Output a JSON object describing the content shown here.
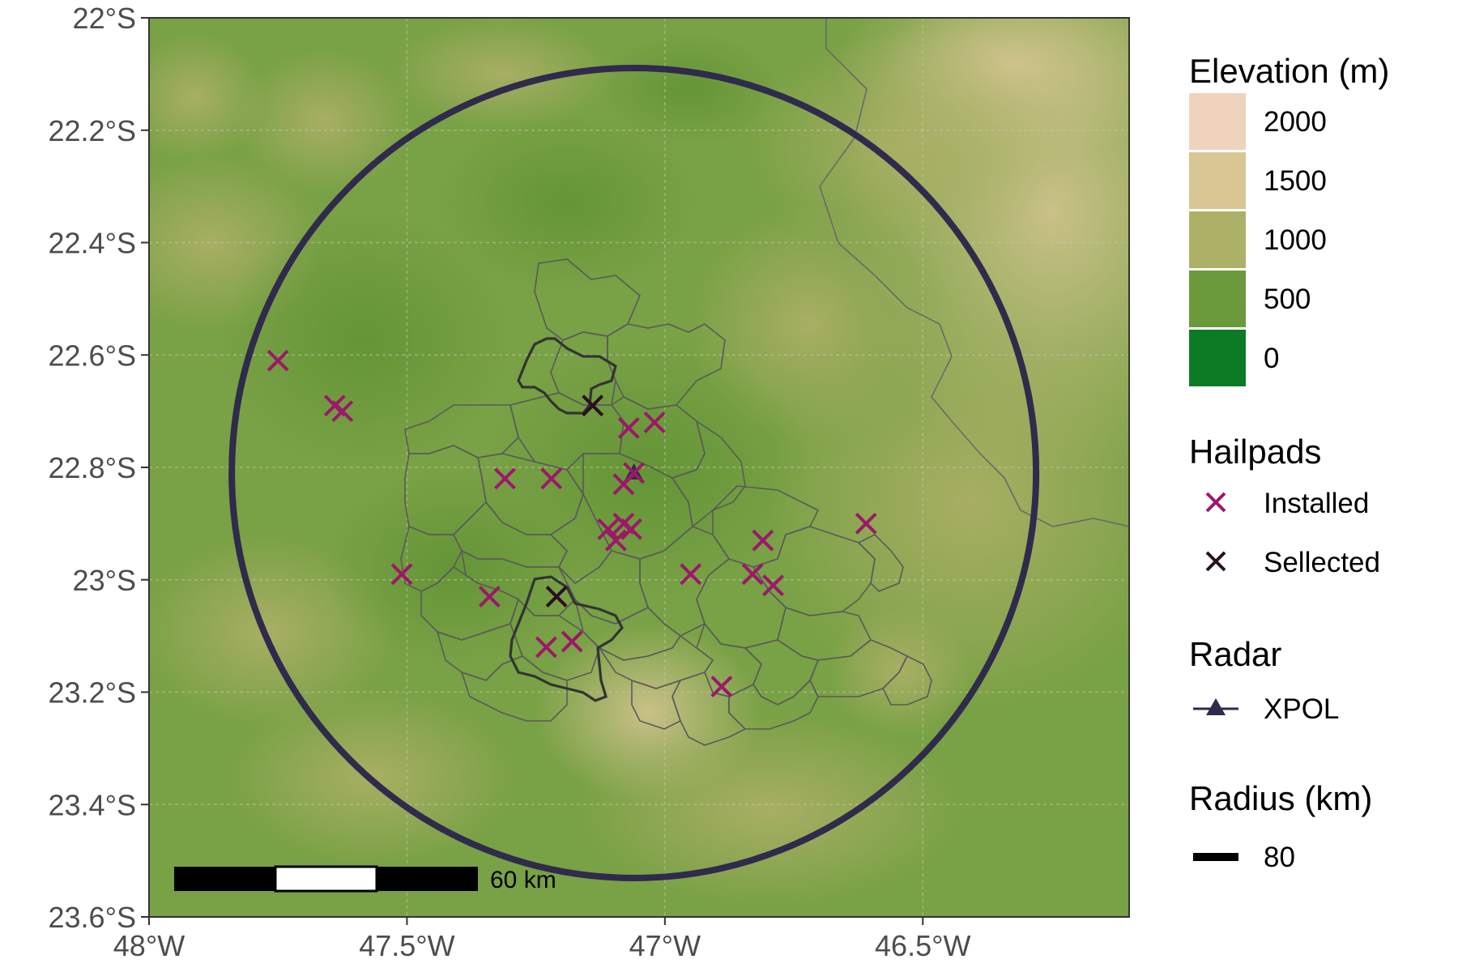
{
  "chart_data": {
    "type": "map",
    "x_axis": {
      "range": [
        -48.0,
        -46.1
      ],
      "ticks": [
        {
          "value": -48.0,
          "label": "48°W"
        },
        {
          "value": -47.5,
          "label": "47.5°W"
        },
        {
          "value": -47.0,
          "label": "47°W"
        },
        {
          "value": -46.5,
          "label": "46.5°W"
        }
      ]
    },
    "y_axis": {
      "range": [
        -23.6,
        -22.0
      ],
      "ticks": [
        {
          "value": -22.0,
          "label": "22°S"
        },
        {
          "value": -22.2,
          "label": "22.2°S"
        },
        {
          "value": -22.4,
          "label": "22.4°S"
        },
        {
          "value": -22.6,
          "label": "22.6°S"
        },
        {
          "value": -22.8,
          "label": "22.8°S"
        },
        {
          "value": -23.0,
          "label": "23°S"
        },
        {
          "value": -23.2,
          "label": "23.2°S"
        },
        {
          "value": -23.4,
          "label": "23.4°S"
        },
        {
          "value": -23.6,
          "label": "23.6°S"
        }
      ]
    },
    "grid": true,
    "radar": {
      "name": "XPOL",
      "lon": -47.06,
      "lat": -22.81,
      "radius_km": 80,
      "color": "#302a4d"
    },
    "hailpads_installed": [
      {
        "lon": -47.75,
        "lat": -22.61
      },
      {
        "lon": -47.64,
        "lat": -22.69
      },
      {
        "lon": -47.625,
        "lat": -22.7
      },
      {
        "lon": -47.31,
        "lat": -22.82
      },
      {
        "lon": -47.22,
        "lat": -22.82
      },
      {
        "lon": -47.07,
        "lat": -22.73
      },
      {
        "lon": -47.02,
        "lat": -22.72
      },
      {
        "lon": -47.06,
        "lat": -22.81
      },
      {
        "lon": -47.08,
        "lat": -22.83
      },
      {
        "lon": -47.11,
        "lat": -22.91
      },
      {
        "lon": -47.08,
        "lat": -22.9
      },
      {
        "lon": -47.065,
        "lat": -22.91
      },
      {
        "lon": -47.095,
        "lat": -22.93
      },
      {
        "lon": -47.51,
        "lat": -22.99
      },
      {
        "lon": -47.34,
        "lat": -23.03
      },
      {
        "lon": -47.23,
        "lat": -23.12
      },
      {
        "lon": -47.18,
        "lat": -23.11
      },
      {
        "lon": -46.95,
        "lat": -22.99
      },
      {
        "lon": -46.83,
        "lat": -22.99
      },
      {
        "lon": -46.79,
        "lat": -23.01
      },
      {
        "lon": -46.81,
        "lat": -22.93
      },
      {
        "lon": -46.61,
        "lat": -22.9
      },
      {
        "lon": -46.89,
        "lat": -23.19
      }
    ],
    "hailpads_selected": [
      {
        "lon": -47.14,
        "lat": -22.69
      },
      {
        "lon": -47.21,
        "lat": -23.03
      }
    ],
    "scale_bar": {
      "label": "60 km",
      "distance_km": 60,
      "position": "bottom-left"
    },
    "legend_placement": "right",
    "colors": {
      "installed": "#9c1869",
      "selected": "#2a0f22",
      "radar": "#302a4d",
      "boundaries": "#5a5a5a"
    }
  },
  "legend": {
    "elevation": {
      "title": "Elevation (m)",
      "items": [
        {
          "label": "2000",
          "color": "#f0d3bc"
        },
        {
          "label": "1500",
          "color": "#d8c693"
        },
        {
          "label": "1000",
          "color": "#adb067"
        },
        {
          "label": "500",
          "color": "#6b9a3c"
        },
        {
          "label": "0",
          "color": "#0d7a26"
        }
      ]
    },
    "hailpads": {
      "title": "Hailpads",
      "items": [
        {
          "label": "Installed",
          "color": "#9c1869"
        },
        {
          "label": "Sellected",
          "color": "#2a0f22"
        }
      ]
    },
    "radar": {
      "title": "Radar",
      "label": "XPOL"
    },
    "radius": {
      "title": "Radius (km)",
      "label": "80"
    }
  }
}
